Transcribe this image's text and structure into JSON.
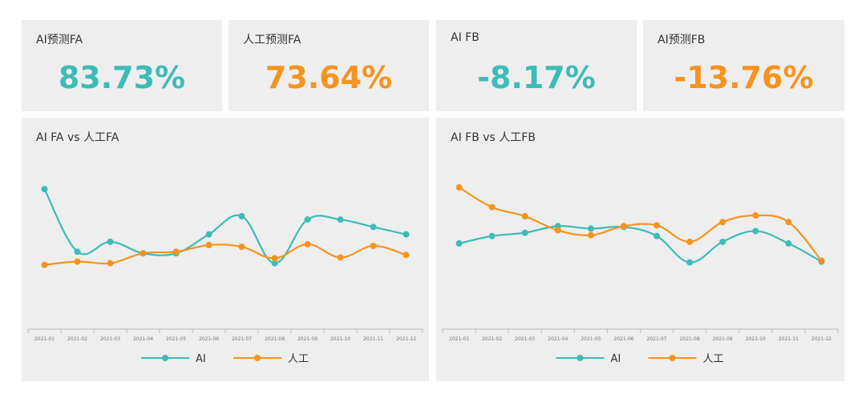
{
  "colors": {
    "ai": "#3dbcb7",
    "human": "#f7931e",
    "card_bg": "#eeeeee"
  },
  "kpis": [
    {
      "label": "AI预测FA",
      "value": "83.73%",
      "color": "#3dbcb7"
    },
    {
      "label": "人工预测FA",
      "value": "73.64%",
      "color": "#f7931e"
    },
    {
      "label": "AI FB",
      "value": "-8.17%",
      "color": "#3dbcb7"
    },
    {
      "label": "AI预测FB",
      "value": "-13.76%",
      "color": "#f7931e"
    }
  ],
  "chart_data": [
    {
      "type": "line",
      "title": "AI FA  vs  人工FA",
      "categories": [
        "2021-01",
        "2021-02",
        "2021-03",
        "2021-04",
        "2021-05",
        "2021-06",
        "2021-07",
        "2021-08",
        "2021-09",
        "2021-10",
        "2021-11",
        "2021-12"
      ],
      "series": [
        {
          "name": "AI",
          "color": "#3dbcb7",
          "values": [
            132,
            56,
            68,
            54,
            54,
            77,
            99,
            42,
            95,
            95,
            86,
            77
          ]
        },
        {
          "name": "人工",
          "color": "#f7931e",
          "values": [
            40,
            44,
            42,
            54,
            56,
            64,
            62,
            48,
            65,
            49,
            63,
            52
          ]
        }
      ],
      "ylim": [
        -38,
        170
      ],
      "grid": false,
      "legend_position": "bottom"
    },
    {
      "type": "line",
      "title": "AI FB  vs  人工FB",
      "categories": [
        "2021-01",
        "2021-02",
        "2021-03",
        "2021-04",
        "2021-05",
        "2021-06",
        "2021-07",
        "2021-08",
        "2021-09",
        "2021-10",
        "2021-11",
        "2021-12"
      ],
      "series": [
        {
          "name": "AI",
          "color": "#3dbcb7",
          "values": [
            66,
            75,
            79,
            87,
            84,
            86,
            75,
            43,
            68,
            81,
            66,
            44
          ]
        },
        {
          "name": "人工",
          "color": "#f7931e",
          "values": [
            134,
            110,
            99,
            82,
            76,
            87,
            88,
            68,
            92,
            100,
            92,
            45
          ]
        }
      ],
      "ylim": [
        -38,
        170
      ],
      "grid": false,
      "legend_position": "bottom"
    }
  ]
}
